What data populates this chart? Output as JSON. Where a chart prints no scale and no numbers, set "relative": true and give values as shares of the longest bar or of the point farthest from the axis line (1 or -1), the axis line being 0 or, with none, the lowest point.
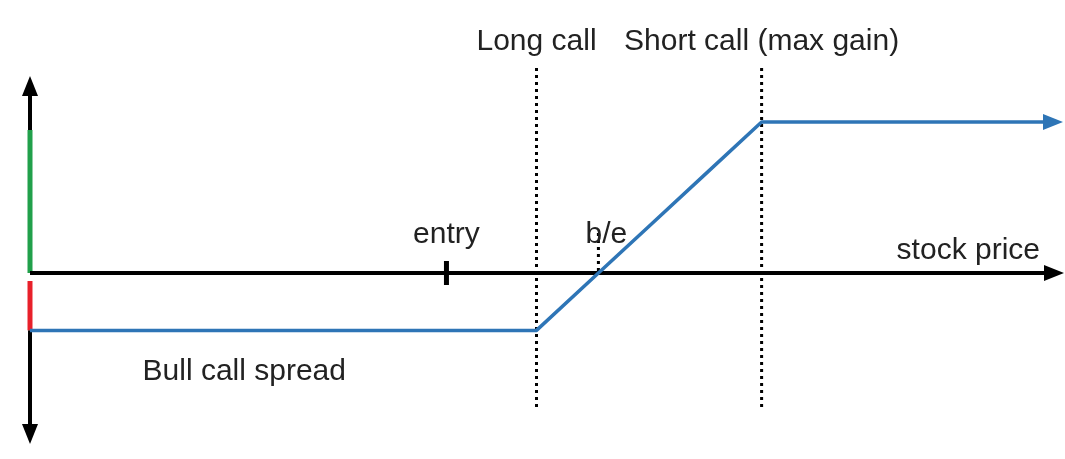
{
  "chart_data": {
    "type": "line",
    "relative": true,
    "xlabel": "stock price",
    "categories": [
      null,
      null,
      null,
      null,
      null,
      null,
      null,
      null,
      null,
      null,
      null,
      null,
      null,
      null,
      null,
      null,
      null,
      null,
      null
    ],
    "series": [
      {
        "name": "Bull call spread",
        "color": "#2e75b6",
        "values": [
          -0.38,
          -0.38,
          -0.38,
          -0.38,
          -0.38,
          -0.38,
          -0.38,
          -0.38,
          -0.38,
          -0.38,
          -0.035,
          0.31,
          0.655,
          1,
          1,
          1,
          1,
          1,
          1
        ]
      }
    ],
    "annotations": [
      "Long call",
      "Short call (max gain)",
      "entry",
      "b/e"
    ],
    "marker": "none",
    "line_style": "solid"
  }
}
